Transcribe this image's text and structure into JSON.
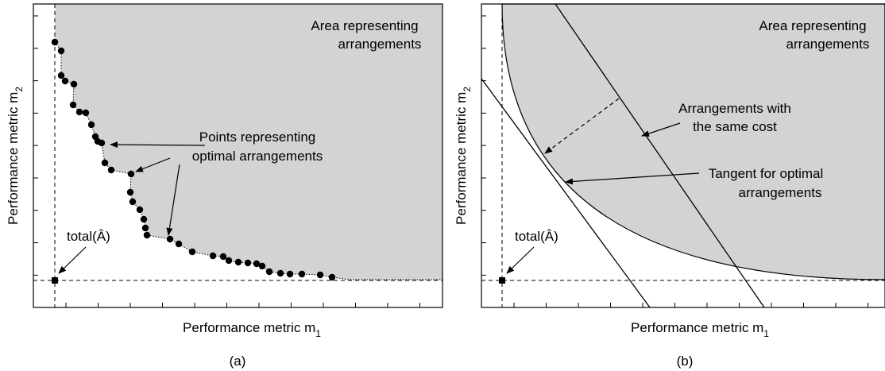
{
  "panels": [
    {
      "id": "a",
      "caption": "(a)",
      "xlabel": "Performance metric m",
      "xlabel_sub": "1",
      "ylabel": "Performance metric m",
      "ylabel_sub": "2",
      "area_label_line1": "Area representing",
      "area_label_line2": "arrangements",
      "points_label_line1": "Points representing",
      "points_label_line2": "optimal arrangements",
      "total_label": "total(Â)"
    },
    {
      "id": "b",
      "caption": "(b)",
      "xlabel": "Performance metric m",
      "xlabel_sub": "1",
      "ylabel": "Performance metric m",
      "ylabel_sub": "2",
      "area_label_line1": "Area representing",
      "area_label_line2": "arrangements",
      "same_cost_label_line1": "Arrangements with",
      "same_cost_label_line2": "the same cost",
      "tangent_label_line1": "Tangent for optimal",
      "tangent_label_line2": "arrangements",
      "total_label": "total(Â)"
    }
  ],
  "colors": {
    "region_fill": "#d3d3d3",
    "ink": "#000000"
  }
}
